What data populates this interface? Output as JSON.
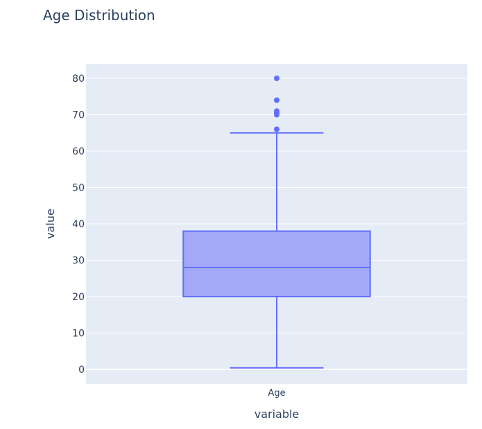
{
  "chart_data": {
    "type": "box",
    "title": "Age Distribution",
    "xlabel": "variable",
    "ylabel": "value",
    "categories": [
      "Age"
    ],
    "series": [
      {
        "category": "Age",
        "lower_fence": 0.42,
        "q1": 20,
        "median": 28,
        "q3": 38,
        "upper_fence": 65,
        "outliers": [
          66,
          70,
          70.5,
          71,
          74,
          80
        ]
      }
    ],
    "ylim": [
      -4,
      84
    ],
    "yticks": [
      0,
      10,
      20,
      30,
      40,
      50,
      60,
      70,
      80
    ],
    "grid": true,
    "colors": {
      "plot_bg": "#e5ecf6",
      "grid": "#ffffff",
      "box_line": "#636efa",
      "box_fill": "#a3a9f8",
      "text": "#2a3f5f"
    }
  }
}
